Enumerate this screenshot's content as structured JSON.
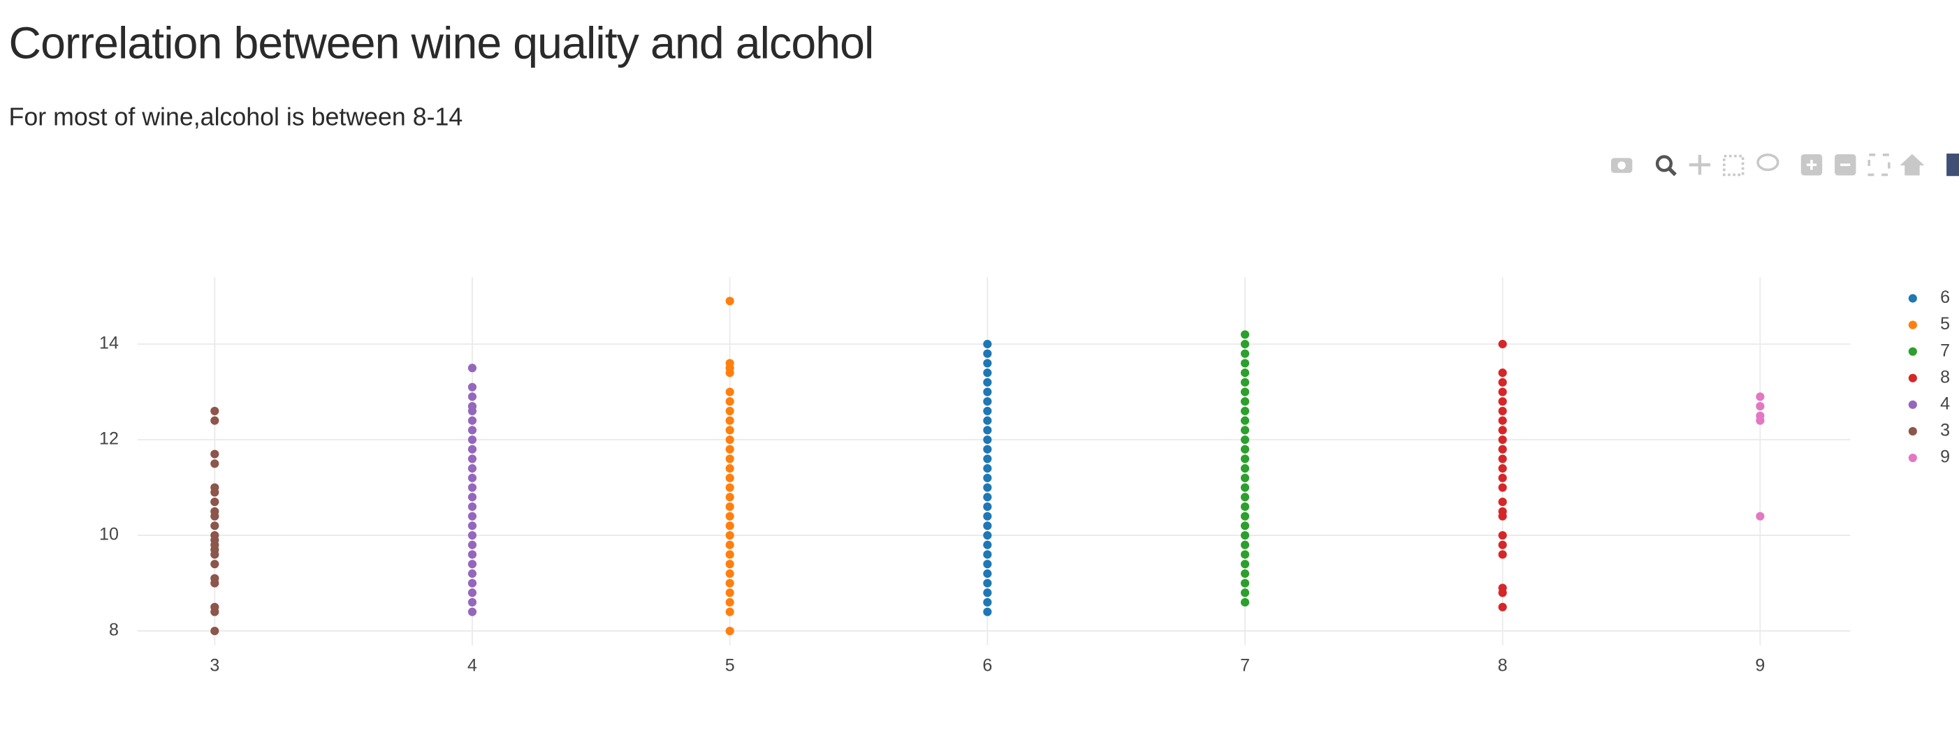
{
  "title": "Correlation between wine quality and alcohol",
  "subtitle": "For most of wine,alcohol is between 8-14",
  "chart_data": {
    "type": "scatter",
    "xlim": [
      2.7,
      9.35
    ],
    "ylim": [
      7.7,
      15.4
    ],
    "xticks": [
      3,
      4,
      5,
      6,
      7,
      8,
      9
    ],
    "yticks": [
      8,
      10,
      12,
      14
    ],
    "grid": true,
    "legend": "right",
    "series": [
      {
        "name": "6",
        "color": "#1f77b4",
        "x": 6,
        "values": [
          8.4,
          8.6,
          8.8,
          9.0,
          9.2,
          9.4,
          9.6,
          9.8,
          10.0,
          10.2,
          10.4,
          10.6,
          10.8,
          11.0,
          11.2,
          11.4,
          11.6,
          11.8,
          12.0,
          12.2,
          12.4,
          12.6,
          12.8,
          13.0,
          13.2,
          13.4,
          13.6,
          13.8,
          14.0
        ]
      },
      {
        "name": "5",
        "color": "#ff7f0e",
        "x": 5,
        "values": [
          8.0,
          8.4,
          8.6,
          8.8,
          9.0,
          9.2,
          9.4,
          9.6,
          9.8,
          10.0,
          10.2,
          10.4,
          10.6,
          10.8,
          11.0,
          11.2,
          11.4,
          11.6,
          11.8,
          12.0,
          12.2,
          12.4,
          12.6,
          12.8,
          13.0,
          13.4,
          13.5,
          13.6,
          14.9
        ]
      },
      {
        "name": "7",
        "color": "#2ca02c",
        "x": 7,
        "values": [
          8.6,
          8.8,
          9.0,
          9.2,
          9.4,
          9.6,
          9.8,
          10.0,
          10.2,
          10.4,
          10.6,
          10.8,
          11.0,
          11.2,
          11.4,
          11.6,
          11.8,
          12.0,
          12.2,
          12.4,
          12.6,
          12.8,
          13.0,
          13.2,
          13.4,
          13.6,
          13.8,
          14.0,
          14.2
        ]
      },
      {
        "name": "8",
        "color": "#d62728",
        "x": 8,
        "values": [
          8.5,
          8.8,
          8.9,
          9.6,
          9.8,
          10.0,
          10.4,
          10.5,
          10.7,
          11.0,
          11.2,
          11.4,
          11.6,
          11.8,
          12.0,
          12.2,
          12.4,
          12.6,
          12.8,
          13.0,
          13.2,
          13.4,
          14.0
        ]
      },
      {
        "name": "4",
        "color": "#9467bd",
        "x": 4,
        "values": [
          8.4,
          8.6,
          8.8,
          9.0,
          9.2,
          9.4,
          9.6,
          9.8,
          10.0,
          10.2,
          10.4,
          10.6,
          10.8,
          11.0,
          11.2,
          11.4,
          11.6,
          11.8,
          12.0,
          12.2,
          12.4,
          12.6,
          12.7,
          12.9,
          13.1,
          13.5
        ]
      },
      {
        "name": "3",
        "color": "#8c564b",
        "x": 3,
        "values": [
          8.0,
          8.4,
          8.5,
          9.0,
          9.1,
          9.4,
          9.6,
          9.7,
          9.8,
          9.9,
          10.0,
          10.2,
          10.4,
          10.5,
          10.7,
          10.9,
          11.0,
          11.5,
          11.7,
          12.4,
          12.6
        ]
      },
      {
        "name": "9",
        "color": "#e377c2",
        "x": 9,
        "values": [
          10.4,
          12.4,
          12.5,
          12.7,
          12.9
        ]
      }
    ]
  }
}
